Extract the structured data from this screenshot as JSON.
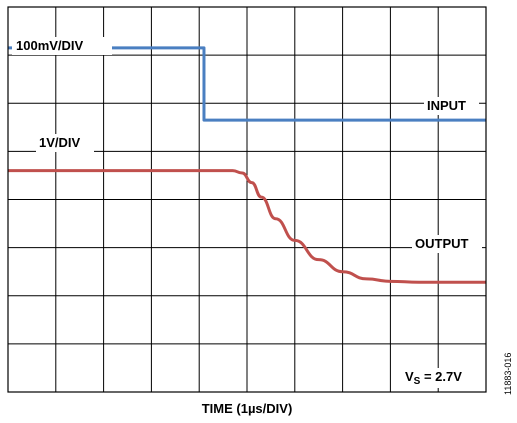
{
  "chart_data": {
    "type": "line",
    "divisions": {
      "x": 10,
      "y": 8
    },
    "xlabel": "TIME (1µs/DIV)",
    "x_range_div": [
      0,
      10
    ],
    "y_range_div": [
      0,
      8
    ],
    "grid": true,
    "series": [
      {
        "name": "INPUT",
        "scale_label": "100mV/DIV",
        "color": "#4a7fc1",
        "x": [
          0,
          4.1,
          4.1,
          4.2,
          10
        ],
        "y": [
          7.15,
          7.15,
          5.65,
          5.65,
          5.65
        ]
      },
      {
        "name": "OUTPUT",
        "scale_label": "1V/DIV",
        "color": "#c0504d",
        "x": [
          0,
          4.7,
          4.9,
          5.1,
          5.3,
          5.6,
          6.0,
          6.5,
          7.0,
          7.5,
          8.0,
          8.6,
          10
        ],
        "y": [
          4.6,
          4.6,
          4.55,
          4.35,
          4.05,
          3.6,
          3.15,
          2.75,
          2.5,
          2.35,
          2.3,
          2.28,
          2.28
        ]
      }
    ],
    "annotations": {
      "supply_main": "V",
      "supply_sub": "S",
      "supply_tail": " = 2.7V"
    }
  },
  "figure_id": "11883-016"
}
